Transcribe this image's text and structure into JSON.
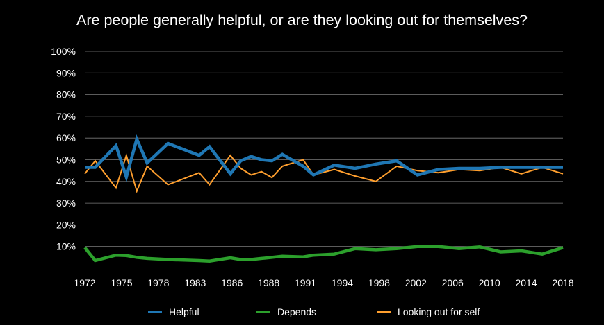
{
  "chart_data": {
    "type": "line",
    "title": "Are people generally helpful, or are they looking out for themselves?",
    "xlabel": "",
    "ylabel": "",
    "ylim": [
      0,
      100
    ],
    "y_ticks": [
      "10%",
      "20%",
      "30%",
      "40%",
      "50%",
      "60%",
      "70%",
      "80%",
      "90%",
      "100%"
    ],
    "x_tick_labels": [
      "1972",
      "1975",
      "1978",
      "1983",
      "1986",
      "1988",
      "1991",
      "1994",
      "1998",
      "2002",
      "2006",
      "2010",
      "2014",
      "2018"
    ],
    "x": [
      1972,
      1973,
      1975,
      1976,
      1977,
      1978,
      1980,
      1983,
      1984,
      1986,
      1987,
      1988,
      1989,
      1990,
      1991,
      1993,
      1994,
      1996,
      1998,
      2000,
      2002,
      2004,
      2006,
      2008,
      2010,
      2012,
      2014,
      2016,
      2018
    ],
    "grid": true,
    "legend_position": "bottom",
    "series": [
      {
        "name": "Helpful",
        "color": "#1F77B4",
        "values": [
          46.5,
          46.5,
          56.5,
          42,
          59.5,
          48.5,
          57.5,
          52,
          56,
          43.5,
          49.5,
          51.5,
          50,
          49.5,
          52.5,
          47,
          43,
          47.5,
          46,
          48,
          49.5,
          43,
          45.5,
          46,
          46,
          46.5,
          46.5,
          46.5,
          46.5
        ]
      },
      {
        "name": "Depends",
        "color": "#2CA02C",
        "values": [
          9.5,
          3.5,
          6,
          5.8,
          5,
          4.5,
          4,
          3.5,
          3.3,
          4.8,
          4,
          4,
          4.5,
          5,
          5.5,
          5.2,
          6,
          6.5,
          9,
          8.5,
          9,
          10,
          10,
          9,
          9.8,
          7.5,
          8,
          6.5,
          9.5
        ]
      },
      {
        "name": "Looking out for self",
        "color": "#FF9F2E",
        "values": [
          43.5,
          49.5,
          37,
          52,
          35.5,
          47,
          38.5,
          44,
          38.5,
          52,
          46,
          43,
          44.5,
          41.8,
          47,
          50,
          43,
          45.5,
          42.5,
          40,
          47,
          45,
          44,
          45.5,
          45,
          46.5,
          43.5,
          46.5,
          43.5
        ]
      }
    ]
  }
}
